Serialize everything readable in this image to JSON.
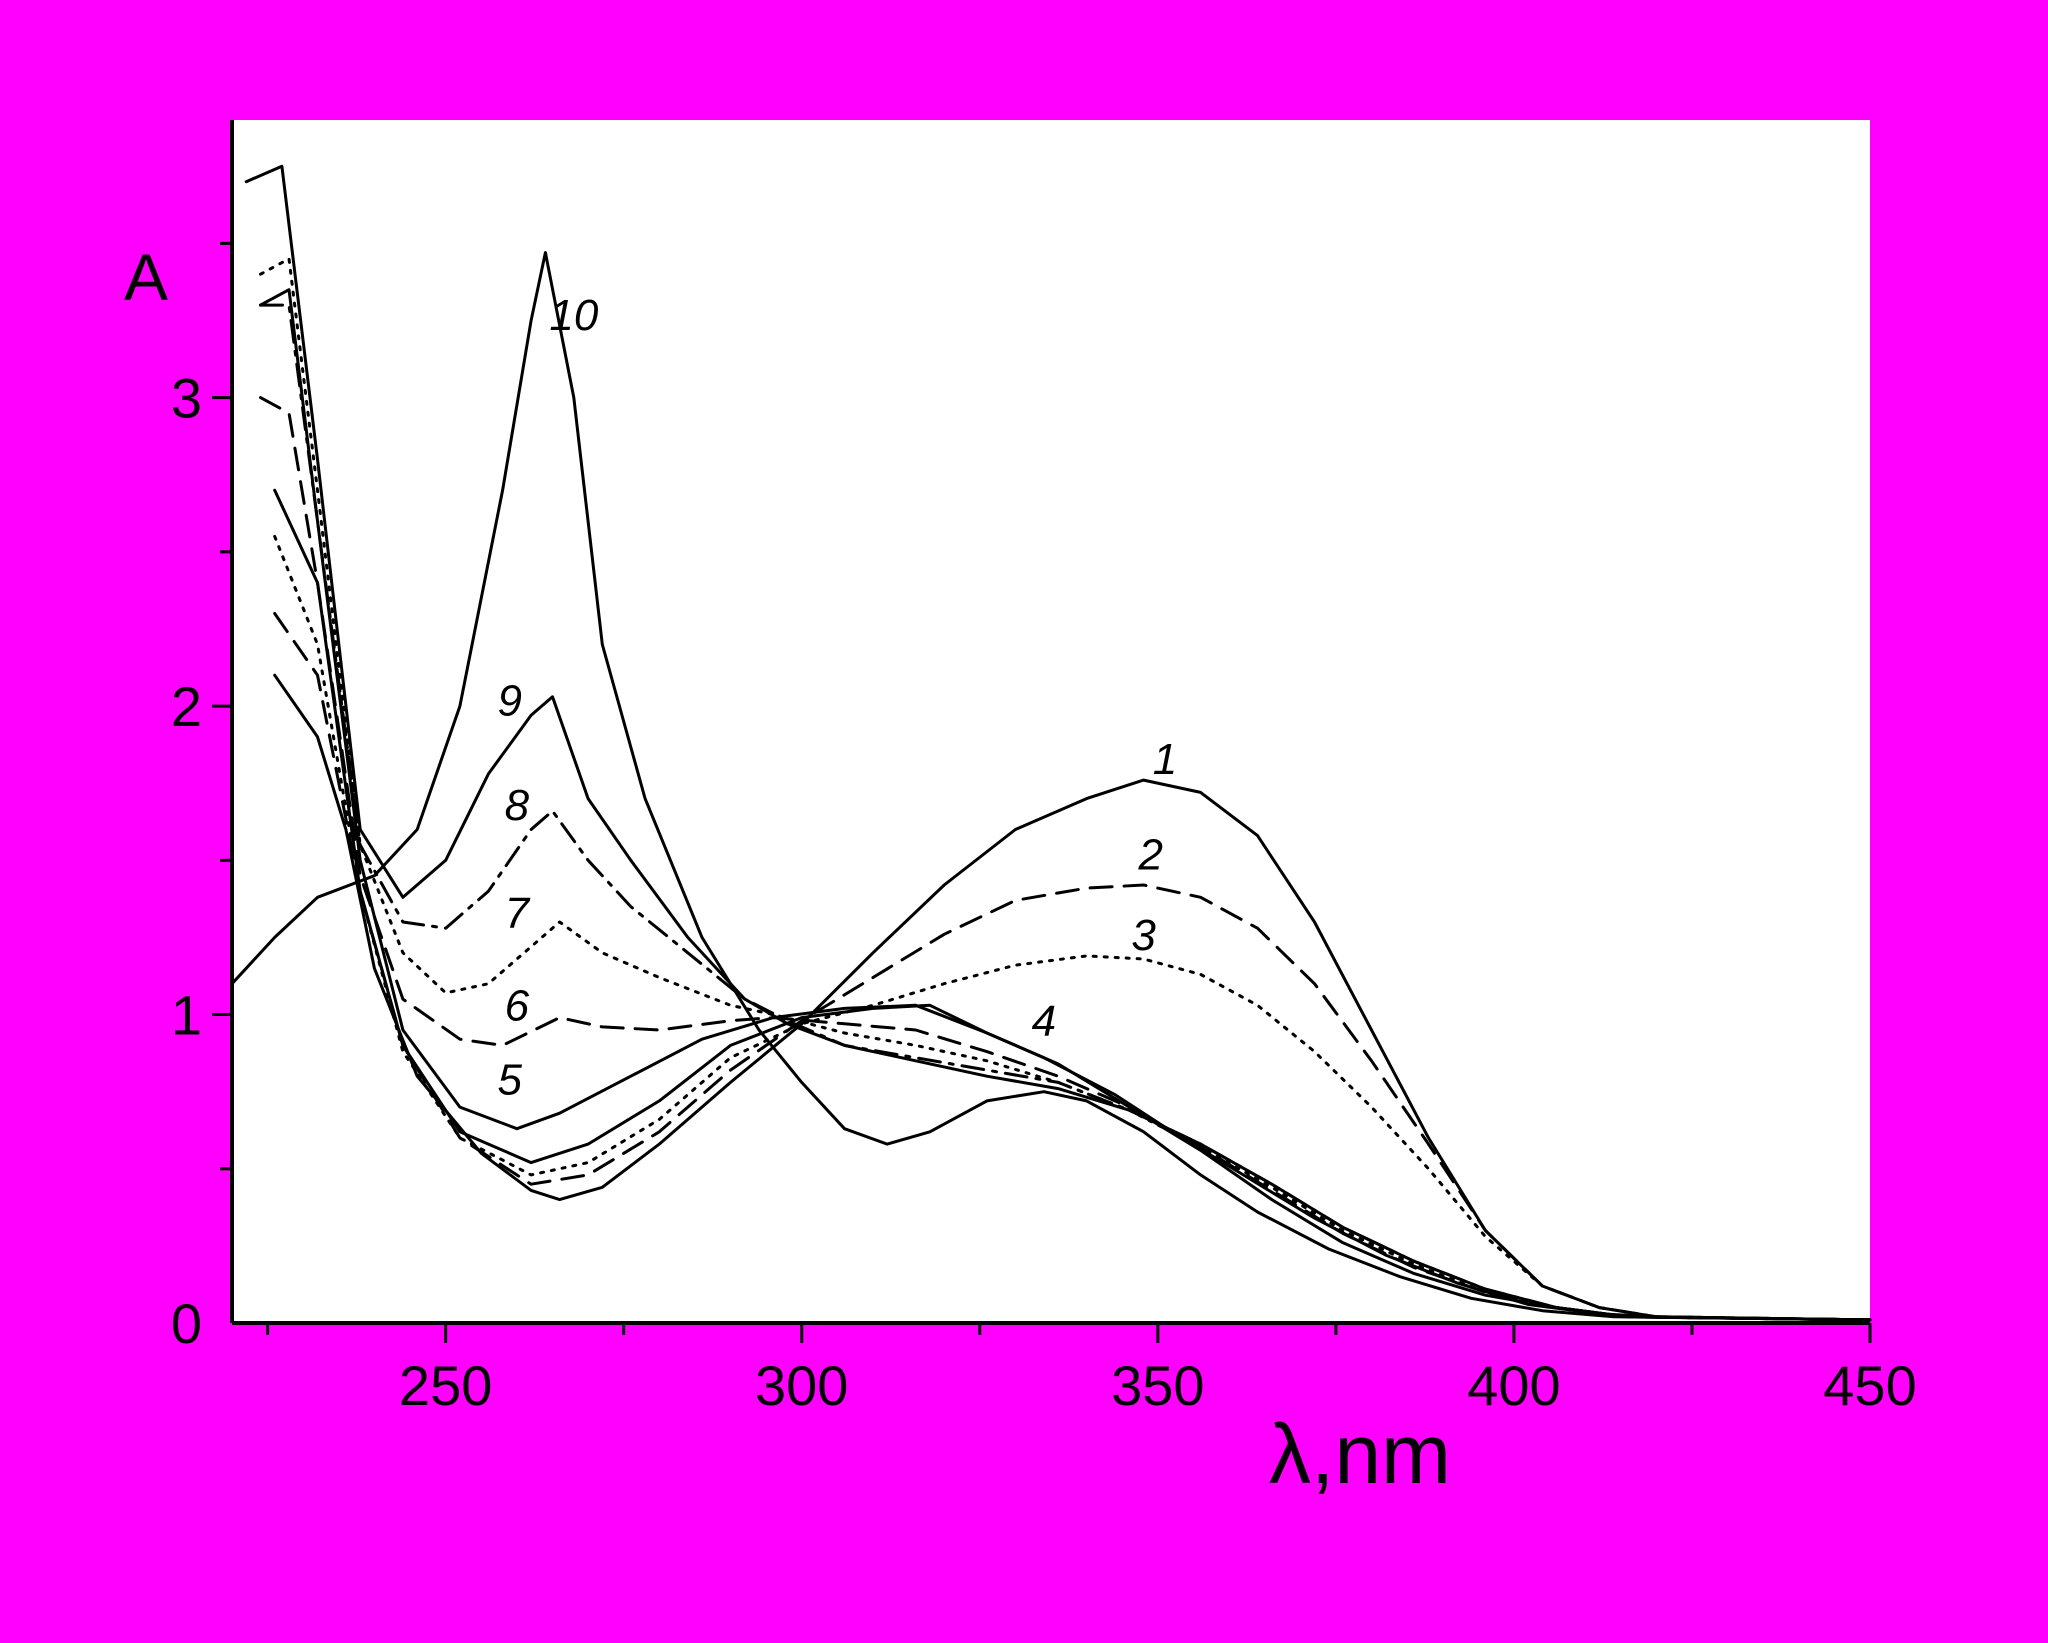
{
  "colors": {
    "background": "#FF00FF",
    "plot_area": "#FFFFFF",
    "ink": "#000000"
  },
  "chart_data": {
    "type": "line",
    "title": "",
    "xlabel": "λ,nm",
    "ylabel": "A",
    "xlim": [
      220,
      450
    ],
    "ylim": [
      0,
      3.9
    ],
    "xticks": [
      250,
      300,
      350,
      400,
      450
    ],
    "yticks": [
      0,
      1,
      2,
      3
    ],
    "grid": false,
    "legend": "none",
    "series": [
      {
        "name": "1",
        "style": "solid",
        "points": [
          [
            226,
            2.1
          ],
          [
            232,
            1.9
          ],
          [
            236,
            1.6
          ],
          [
            240,
            1.15
          ],
          [
            246,
            0.8
          ],
          [
            255,
            0.55
          ],
          [
            262,
            0.43
          ],
          [
            266,
            0.4
          ],
          [
            272,
            0.44
          ],
          [
            280,
            0.58
          ],
          [
            290,
            0.78
          ],
          [
            300,
            0.97
          ],
          [
            310,
            1.2
          ],
          [
            320,
            1.42
          ],
          [
            330,
            1.6
          ],
          [
            340,
            1.7
          ],
          [
            348,
            1.76
          ],
          [
            356,
            1.72
          ],
          [
            364,
            1.58
          ],
          [
            372,
            1.3
          ],
          [
            380,
            0.95
          ],
          [
            388,
            0.6
          ],
          [
            396,
            0.3
          ],
          [
            404,
            0.12
          ],
          [
            412,
            0.05
          ],
          [
            420,
            0.02
          ],
          [
            450,
            0.01
          ]
        ]
      },
      {
        "name": "2",
        "style": "dash",
        "points": [
          [
            226,
            2.3
          ],
          [
            232,
            2.1
          ],
          [
            238,
            1.4
          ],
          [
            244,
            0.9
          ],
          [
            252,
            0.6
          ],
          [
            262,
            0.45
          ],
          [
            270,
            0.48
          ],
          [
            280,
            0.62
          ],
          [
            290,
            0.82
          ],
          [
            300,
            0.98
          ],
          [
            310,
            1.12
          ],
          [
            320,
            1.26
          ],
          [
            330,
            1.37
          ],
          [
            340,
            1.41
          ],
          [
            348,
            1.42
          ],
          [
            356,
            1.38
          ],
          [
            364,
            1.28
          ],
          [
            372,
            1.1
          ],
          [
            380,
            0.85
          ],
          [
            388,
            0.58
          ],
          [
            396,
            0.3
          ],
          [
            404,
            0.12
          ],
          [
            412,
            0.05
          ],
          [
            420,
            0.02
          ],
          [
            450,
            0.01
          ]
        ]
      },
      {
        "name": "3",
        "style": "dot",
        "points": [
          [
            226,
            2.55
          ],
          [
            232,
            2.2
          ],
          [
            238,
            1.4
          ],
          [
            244,
            0.88
          ],
          [
            252,
            0.6
          ],
          [
            262,
            0.48
          ],
          [
            270,
            0.52
          ],
          [
            280,
            0.66
          ],
          [
            290,
            0.86
          ],
          [
            300,
            0.97
          ],
          [
            310,
            1.03
          ],
          [
            320,
            1.1
          ],
          [
            330,
            1.16
          ],
          [
            340,
            1.19
          ],
          [
            348,
            1.18
          ],
          [
            356,
            1.13
          ],
          [
            364,
            1.03
          ],
          [
            372,
            0.88
          ],
          [
            380,
            0.7
          ],
          [
            388,
            0.5
          ],
          [
            396,
            0.28
          ],
          [
            404,
            0.12
          ],
          [
            412,
            0.05
          ],
          [
            420,
            0.02
          ],
          [
            450,
            0.01
          ]
        ]
      },
      {
        "name": "4",
        "style": "solid",
        "points": [
          [
            226,
            2.7
          ],
          [
            232,
            2.4
          ],
          [
            238,
            1.4
          ],
          [
            244,
            0.9
          ],
          [
            252,
            0.62
          ],
          [
            262,
            0.52
          ],
          [
            270,
            0.58
          ],
          [
            280,
            0.72
          ],
          [
            290,
            0.9
          ],
          [
            300,
            0.99
          ],
          [
            310,
            1.02
          ],
          [
            318,
            1.03
          ],
          [
            326,
            0.94
          ],
          [
            334,
            0.86
          ],
          [
            344,
            0.74
          ],
          [
            352,
            0.62
          ],
          [
            362,
            0.48
          ],
          [
            372,
            0.34
          ],
          [
            382,
            0.22
          ],
          [
            392,
            0.13
          ],
          [
            402,
            0.06
          ],
          [
            412,
            0.03
          ],
          [
            420,
            0.02
          ],
          [
            450,
            0.01
          ]
        ]
      },
      {
        "name": "5",
        "style": "solid",
        "points": [
          [
            224,
            3.3
          ],
          [
            228,
            3.35
          ],
          [
            232,
            2.6
          ],
          [
            238,
            1.5
          ],
          [
            244,
            0.95
          ],
          [
            252,
            0.7
          ],
          [
            260,
            0.63
          ],
          [
            266,
            0.68
          ],
          [
            276,
            0.8
          ],
          [
            286,
            0.92
          ],
          [
            296,
            0.99
          ],
          [
            306,
            1.02
          ],
          [
            316,
            1.03
          ],
          [
            326,
            0.94
          ],
          [
            336,
            0.84
          ],
          [
            346,
            0.7
          ],
          [
            356,
            0.56
          ],
          [
            366,
            0.4
          ],
          [
            376,
            0.26
          ],
          [
            386,
            0.16
          ],
          [
            396,
            0.09
          ],
          [
            406,
            0.05
          ],
          [
            416,
            0.02
          ],
          [
            450,
            0.01
          ]
        ]
      },
      {
        "name": "6",
        "style": "dash",
        "points": [
          [
            224,
            3.0
          ],
          [
            228,
            2.95
          ],
          [
            232,
            2.4
          ],
          [
            238,
            1.45
          ],
          [
            244,
            1.05
          ],
          [
            252,
            0.92
          ],
          [
            258,
            0.9
          ],
          [
            266,
            0.99
          ],
          [
            272,
            0.96
          ],
          [
            280,
            0.95
          ],
          [
            290,
            0.98
          ],
          [
            296,
            0.99
          ],
          [
            306,
            0.97
          ],
          [
            316,
            0.95
          ],
          [
            326,
            0.88
          ],
          [
            336,
            0.8
          ],
          [
            346,
            0.7
          ],
          [
            356,
            0.57
          ],
          [
            366,
            0.43
          ],
          [
            376,
            0.29
          ],
          [
            386,
            0.18
          ],
          [
            396,
            0.1
          ],
          [
            406,
            0.05
          ],
          [
            416,
            0.02
          ],
          [
            450,
            0.01
          ]
        ]
      },
      {
        "name": "7",
        "style": "dot",
        "points": [
          [
            224,
            3.4
          ],
          [
            228,
            3.45
          ],
          [
            232,
            2.7
          ],
          [
            238,
            1.55
          ],
          [
            244,
            1.2
          ],
          [
            250,
            1.07
          ],
          [
            256,
            1.1
          ],
          [
            262,
            1.22
          ],
          [
            266,
            1.3
          ],
          [
            272,
            1.2
          ],
          [
            280,
            1.12
          ],
          [
            290,
            1.03
          ],
          [
            296,
            1.0
          ],
          [
            306,
            0.94
          ],
          [
            316,
            0.9
          ],
          [
            326,
            0.85
          ],
          [
            336,
            0.78
          ],
          [
            346,
            0.69
          ],
          [
            356,
            0.57
          ],
          [
            366,
            0.44
          ],
          [
            376,
            0.3
          ],
          [
            386,
            0.19
          ],
          [
            396,
            0.1
          ],
          [
            406,
            0.05
          ],
          [
            416,
            0.02
          ],
          [
            450,
            0.01
          ]
        ]
      },
      {
        "name": "8",
        "style": "dashdot",
        "points": [
          [
            224,
            3.3
          ],
          [
            228,
            3.3
          ],
          [
            232,
            2.6
          ],
          [
            238,
            1.55
          ],
          [
            244,
            1.3
          ],
          [
            250,
            1.28
          ],
          [
            256,
            1.4
          ],
          [
            262,
            1.6
          ],
          [
            265,
            1.66
          ],
          [
            270,
            1.5
          ],
          [
            276,
            1.35
          ],
          [
            284,
            1.2
          ],
          [
            292,
            1.05
          ],
          [
            298,
            0.98
          ],
          [
            306,
            0.9
          ],
          [
            316,
            0.86
          ],
          [
            326,
            0.82
          ],
          [
            336,
            0.78
          ],
          [
            346,
            0.69
          ],
          [
            356,
            0.58
          ],
          [
            366,
            0.45
          ],
          [
            376,
            0.31
          ],
          [
            386,
            0.2
          ],
          [
            396,
            0.11
          ],
          [
            406,
            0.05
          ],
          [
            416,
            0.02
          ],
          [
            450,
            0.01
          ]
        ]
      },
      {
        "name": "9",
        "style": "solid",
        "points": [
          [
            222,
            3.7
          ],
          [
            227,
            3.75
          ],
          [
            232,
            2.8
          ],
          [
            238,
            1.6
          ],
          [
            244,
            1.38
          ],
          [
            250,
            1.5
          ],
          [
            256,
            1.78
          ],
          [
            262,
            1.97
          ],
          [
            265,
            2.03
          ],
          [
            270,
            1.7
          ],
          [
            276,
            1.5
          ],
          [
            284,
            1.25
          ],
          [
            292,
            1.05
          ],
          [
            298,
            0.97
          ],
          [
            306,
            0.9
          ],
          [
            316,
            0.85
          ],
          [
            326,
            0.8
          ],
          [
            336,
            0.76
          ],
          [
            346,
            0.69
          ],
          [
            356,
            0.58
          ],
          [
            366,
            0.45
          ],
          [
            376,
            0.31
          ],
          [
            386,
            0.2
          ],
          [
            396,
            0.11
          ],
          [
            406,
            0.05
          ],
          [
            416,
            0.02
          ],
          [
            450,
            0.01
          ]
        ]
      },
      {
        "name": "10",
        "style": "solid",
        "points": [
          [
            220,
            1.1
          ],
          [
            226,
            1.25
          ],
          [
            232,
            1.38
          ],
          [
            240,
            1.45
          ],
          [
            246,
            1.6
          ],
          [
            252,
            2.0
          ],
          [
            258,
            2.7
          ],
          [
            262,
            3.25
          ],
          [
            264,
            3.47
          ],
          [
            268,
            3.0
          ],
          [
            272,
            2.2
          ],
          [
            278,
            1.7
          ],
          [
            286,
            1.25
          ],
          [
            294,
            0.95
          ],
          [
            300,
            0.78
          ],
          [
            306,
            0.63
          ],
          [
            312,
            0.58
          ],
          [
            318,
            0.62
          ],
          [
            326,
            0.72
          ],
          [
            334,
            0.75
          ],
          [
            340,
            0.72
          ],
          [
            348,
            0.62
          ],
          [
            356,
            0.48
          ],
          [
            364,
            0.36
          ],
          [
            374,
            0.24
          ],
          [
            384,
            0.15
          ],
          [
            394,
            0.08
          ],
          [
            404,
            0.04
          ],
          [
            414,
            0.02
          ],
          [
            450,
            0.01
          ]
        ]
      }
    ],
    "curve_labels": [
      {
        "text": "1",
        "x": 351,
        "y": 1.78
      },
      {
        "text": "2",
        "x": 349,
        "y": 1.47
      },
      {
        "text": "3",
        "x": 348,
        "y": 1.21
      },
      {
        "text": "4",
        "x": 334,
        "y": 0.93
      },
      {
        "text": "5",
        "x": 259,
        "y": 0.74
      },
      {
        "text": "6",
        "x": 260,
        "y": 0.98
      },
      {
        "text": "7",
        "x": 260,
        "y": 1.28
      },
      {
        "text": "8",
        "x": 260,
        "y": 1.63
      },
      {
        "text": "9",
        "x": 259,
        "y": 1.97
      },
      {
        "text": "10",
        "x": 268,
        "y": 3.22
      }
    ]
  }
}
